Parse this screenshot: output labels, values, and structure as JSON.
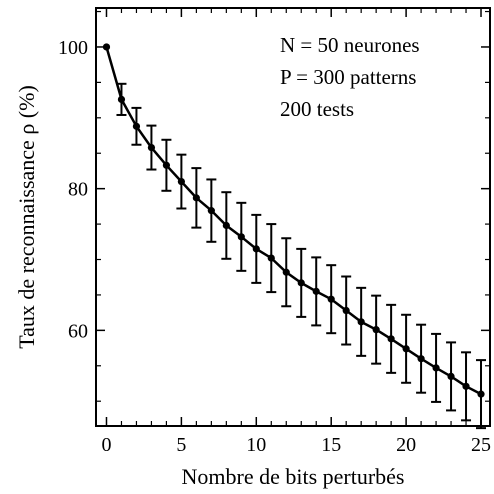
{
  "chart_data": {
    "type": "line",
    "xlabel": "Nombre de bits perturbés",
    "ylabel": "Taux de reconnaissance ρ (%)",
    "xlim": [
      -0.7,
      25.6
    ],
    "ylim": [
      46.5,
      105.5
    ],
    "xticks": [
      0,
      5,
      10,
      15,
      20,
      25
    ],
    "yticks": [
      60,
      80,
      100
    ],
    "x_tick_labels": [
      "0",
      "5",
      "10",
      "15",
      "20",
      "25"
    ],
    "y_tick_labels": [
      "60",
      "80",
      "100"
    ],
    "grid": false,
    "legend": "none",
    "annotations": [
      "N = 50 neurones",
      "P = 300 patterns",
      "200 tests"
    ],
    "series": [
      {
        "x": [
          0,
          1,
          2,
          3,
          4,
          5,
          6,
          7,
          8,
          9,
          10,
          11,
          12,
          13,
          14,
          15,
          16,
          17,
          18,
          19,
          20,
          21,
          22,
          23,
          24,
          25
        ],
        "y": [
          100.0,
          92.6,
          88.8,
          85.8,
          83.3,
          81.0,
          78.7,
          76.9,
          74.8,
          73.2,
          71.5,
          70.2,
          68.2,
          66.7,
          65.5,
          64.4,
          62.8,
          61.2,
          60.1,
          58.8,
          57.4,
          56.0,
          54.7,
          53.5,
          52.1,
          51.0
        ],
        "err": [
          0,
          2.2,
          2.6,
          3.1,
          3.6,
          3.8,
          4.2,
          4.4,
          4.7,
          4.8,
          4.8,
          4.8,
          4.8,
          4.8,
          4.8,
          4.8,
          4.8,
          4.8,
          4.8,
          4.8,
          4.8,
          4.8,
          4.8,
          4.8,
          4.8,
          4.8
        ]
      }
    ]
  },
  "colors": {
    "line": "#000000",
    "axis": "#000000",
    "background": "#ffffff"
  }
}
